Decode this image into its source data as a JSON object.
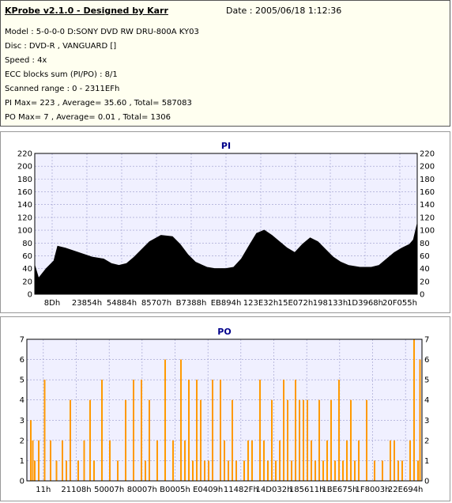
{
  "header": {
    "title": "KProbe v2.1.0 - Designed by Karr",
    "date": "Date : 2005/06/18 1:12:36",
    "lines": [
      "Model : 5-0-0-0 D:SONY    DVD RW DRU-800A  KY03",
      "Disc : DVD-R , VANGUARD []",
      "Speed : 4x",
      "ECC blocks sum (PI/PO) : 8/1",
      "Scanned range : 0 - 2311EFh",
      "PI Max= 223 , Average= 35.60 , Total= 587083",
      "PO Max= 7 , Average= 0.01 , Total= 1306"
    ]
  },
  "colors": {
    "pi": "#000000",
    "po": "#ff9900",
    "plot_bg": "#f0f0ff",
    "grid": "#9999cc"
  },
  "chart_data": [
    {
      "type": "area",
      "title": "PI",
      "ylim": [
        0,
        220
      ],
      "yticks": [
        0,
        20,
        40,
        60,
        80,
        100,
        120,
        140,
        160,
        180,
        200,
        220
      ],
      "xlabels": [
        "8Dh",
        "23854h",
        "54884h",
        "85707h",
        "B7388h",
        "EB894h",
        "123E32h",
        "15E072h",
        "198133h",
        "1D3968h",
        "20F055h"
      ],
      "x": [
        0,
        0.01,
        0.03,
        0.05,
        0.06,
        0.08,
        0.1,
        0.13,
        0.15,
        0.18,
        0.2,
        0.22,
        0.24,
        0.26,
        0.28,
        0.3,
        0.33,
        0.36,
        0.38,
        0.4,
        0.42,
        0.45,
        0.47,
        0.5,
        0.52,
        0.54,
        0.56,
        0.58,
        0.6,
        0.62,
        0.64,
        0.66,
        0.68,
        0.7,
        0.72,
        0.74,
        0.76,
        0.78,
        0.8,
        0.82,
        0.85,
        0.88,
        0.9,
        0.92,
        0.94,
        0.96,
        0.98,
        0.99,
        1.0
      ],
      "values": [
        45,
        25,
        40,
        52,
        75,
        72,
        68,
        62,
        58,
        55,
        48,
        45,
        48,
        58,
        70,
        82,
        92,
        90,
        78,
        62,
        50,
        42,
        40,
        40,
        42,
        55,
        75,
        95,
        100,
        92,
        82,
        72,
        65,
        78,
        88,
        82,
        70,
        58,
        50,
        45,
        42,
        42,
        45,
        55,
        65,
        72,
        78,
        85,
        110
      ]
    },
    {
      "type": "bar",
      "title": "PO",
      "ylim": [
        0,
        7
      ],
      "yticks": [
        0,
        1,
        2,
        3,
        4,
        5,
        6,
        7
      ],
      "xlabels": [
        "11h",
        "21108h",
        "50007h",
        "80007h",
        "B0005h",
        "E0409h",
        "11482Fh",
        "14D032h",
        "185611h",
        "1BE675h",
        "1F8003h",
        "22E694h"
      ],
      "x": [
        0.01,
        0.015,
        0.02,
        0.03,
        0.045,
        0.06,
        0.075,
        0.09,
        0.1,
        0.11,
        0.13,
        0.145,
        0.16,
        0.17,
        0.19,
        0.21,
        0.23,
        0.25,
        0.27,
        0.29,
        0.3,
        0.31,
        0.33,
        0.35,
        0.37,
        0.39,
        0.4,
        0.41,
        0.42,
        0.43,
        0.44,
        0.45,
        0.46,
        0.47,
        0.49,
        0.5,
        0.51,
        0.52,
        0.53,
        0.55,
        0.56,
        0.57,
        0.59,
        0.6,
        0.61,
        0.62,
        0.63,
        0.64,
        0.65,
        0.66,
        0.67,
        0.68,
        0.69,
        0.7,
        0.71,
        0.72,
        0.73,
        0.74,
        0.75,
        0.76,
        0.77,
        0.78,
        0.79,
        0.8,
        0.81,
        0.82,
        0.83,
        0.84,
        0.86,
        0.88,
        0.9,
        0.92,
        0.93,
        0.94,
        0.95,
        0.97,
        0.98,
        0.99,
        0.995
      ],
      "values": [
        3,
        2,
        1,
        2,
        5,
        2,
        1,
        2,
        1,
        4,
        1,
        2,
        4,
        1,
        5,
        2,
        1,
        4,
        5,
        5,
        1,
        4,
        2,
        6,
        2,
        6,
        2,
        5,
        1,
        5,
        4,
        1,
        1,
        5,
        5,
        2,
        1,
        4,
        1,
        1,
        2,
        2,
        5,
        2,
        1,
        4,
        1,
        2,
        5,
        4,
        1,
        5,
        4,
        4,
        4,
        2,
        1,
        4,
        1,
        2,
        4,
        1,
        5,
        1,
        2,
        4,
        1,
        2,
        4,
        1,
        1,
        2,
        2,
        1,
        1,
        2,
        7,
        1,
        6
      ]
    }
  ]
}
